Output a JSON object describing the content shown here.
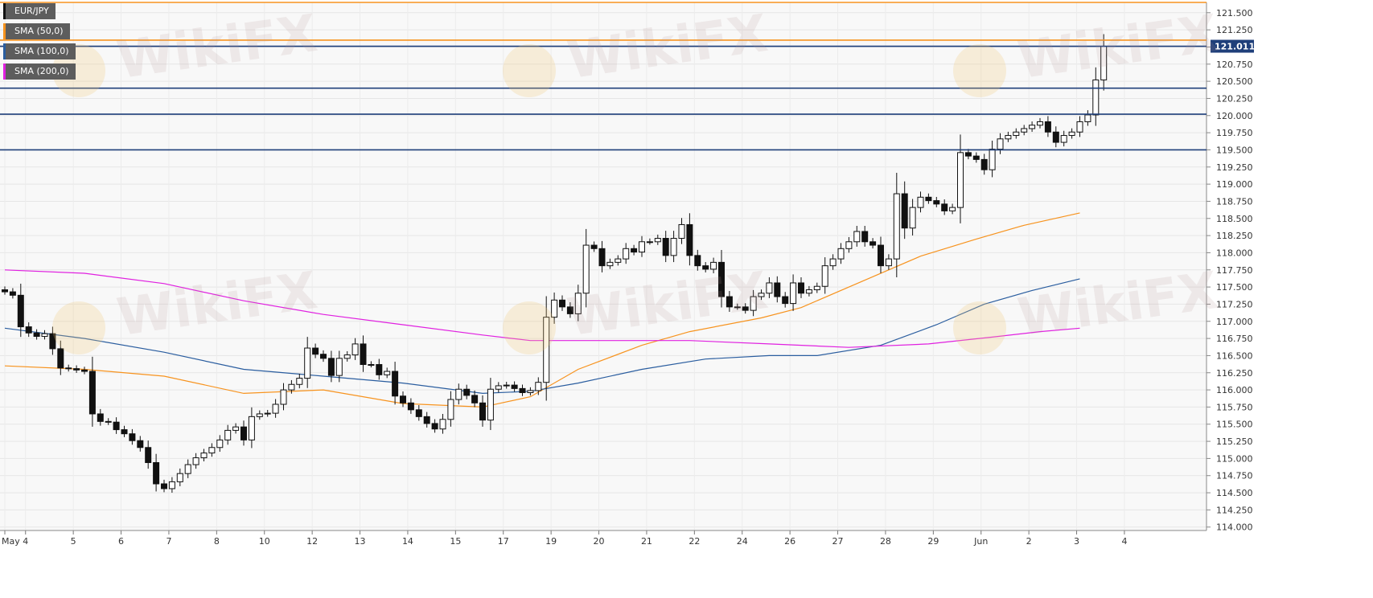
{
  "legend": [
    {
      "label": "EUR/JPY",
      "color": "#111111"
    },
    {
      "label": "SMA (50,0)",
      "color": "#f7931e"
    },
    {
      "label": "SMA (100,0)",
      "color": "#2a5d9f"
    },
    {
      "label": "SMA (200,0)",
      "color": "#e020e0"
    }
  ],
  "watermark": "WikiFX",
  "last_price": {
    "label": "121.011",
    "value": 121.011
  },
  "chart_data": {
    "type": "candlestick",
    "symbol": "EUR/JPY",
    "ylim": [
      113.95,
      121.65
    ],
    "yticks": [
      "114.000",
      "114.250",
      "114.500",
      "114.750",
      "115.000",
      "115.250",
      "115.500",
      "115.750",
      "116.000",
      "116.250",
      "116.500",
      "116.750",
      "117.000",
      "117.250",
      "117.500",
      "117.750",
      "118.000",
      "118.250",
      "118.500",
      "118.750",
      "119.000",
      "119.250",
      "119.500",
      "119.750",
      "120.000",
      "120.250",
      "120.500",
      "120.750",
      "121.000",
      "121.250",
      "121.500"
    ],
    "xticks": [
      {
        "label": "May",
        "bar": 0
      },
      {
        "label": "4",
        "bar": 2.6
      },
      {
        "label": "5",
        "bar": 8.6
      },
      {
        "label": "6",
        "bar": 14.6
      },
      {
        "label": "7",
        "bar": 20.6
      },
      {
        "label": "8",
        "bar": 26.6
      },
      {
        "label": "10",
        "bar": 32.6
      },
      {
        "label": "12",
        "bar": 38.6
      },
      {
        "label": "13",
        "bar": 44.6
      },
      {
        "label": "14",
        "bar": 50.6
      },
      {
        "label": "15",
        "bar": 56.6
      },
      {
        "label": "17",
        "bar": 62.6
      },
      {
        "label": "19",
        "bar": 68.6
      },
      {
        "label": "20",
        "bar": 74.6
      },
      {
        "label": "21",
        "bar": 80.6
      },
      {
        "label": "22",
        "bar": 86.6
      },
      {
        "label": "24",
        "bar": 92.6
      },
      {
        "label": "26",
        "bar": 98.6
      },
      {
        "label": "27",
        "bar": 104.6
      },
      {
        "label": "28",
        "bar": 110.6
      },
      {
        "label": "29",
        "bar": 116.6
      },
      {
        "label": "Jun",
        "bar": 122.6
      },
      {
        "label": "2",
        "bar": 128.6
      },
      {
        "label": "3",
        "bar": 134.6
      },
      {
        "label": "4",
        "bar": 140.6
      }
    ],
    "hlines": [
      {
        "value": 121.65,
        "color": "#f7931e"
      },
      {
        "value": 121.1,
        "color": "#f7931e"
      },
      {
        "value": 121.011,
        "color": "#1f3f7a"
      },
      {
        "value": 120.4,
        "color": "#1f3f7a"
      },
      {
        "value": 120.02,
        "color": "#1f3f7a"
      },
      {
        "value": 119.5,
        "color": "#1f3f7a"
      }
    ],
    "closes": [
      117.43,
      117.38,
      116.92,
      116.83,
      116.78,
      116.82,
      116.6,
      116.32,
      116.31,
      116.29,
      116.27,
      115.65,
      115.54,
      115.53,
      115.42,
      115.36,
      115.26,
      115.16,
      114.94,
      114.63,
      114.56,
      114.66,
      114.78,
      114.91,
      115.01,
      115.08,
      115.16,
      115.27,
      115.41,
      115.46,
      115.27,
      115.61,
      115.65,
      115.66,
      115.79,
      116.0,
      116.08,
      116.17,
      116.61,
      116.52,
      116.46,
      116.21,
      116.46,
      116.51,
      116.67,
      116.37,
      116.37,
      116.22,
      116.27,
      115.91,
      115.81,
      115.71,
      115.61,
      115.51,
      115.43,
      115.57,
      115.86,
      116.01,
      115.92,
      115.81,
      115.56,
      116.01,
      116.06,
      116.07,
      116.02,
      115.96,
      115.99,
      116.11,
      117.06,
      117.31,
      117.21,
      117.11,
      117.41,
      118.11,
      118.06,
      117.81,
      117.86,
      117.91,
      118.06,
      118.01,
      118.16,
      118.16,
      118.21,
      117.96,
      118.21,
      118.41,
      117.96,
      117.81,
      117.76,
      117.86,
      117.36,
      117.21,
      117.21,
      117.16,
      117.36,
      117.41,
      117.56,
      117.36,
      117.26,
      117.56,
      117.41,
      117.46,
      117.51,
      117.81,
      117.91,
      118.06,
      118.16,
      118.31,
      118.16,
      118.11,
      117.81,
      117.91,
      118.86,
      118.36,
      118.66,
      118.81,
      118.76,
      118.71,
      118.61,
      118.66,
      119.46,
      119.41,
      119.36,
      119.21,
      119.51,
      119.66,
      119.71,
      119.76,
      119.81,
      119.86,
      119.91,
      119.76,
      119.61,
      119.71,
      119.76,
      119.91,
      120.01,
      120.52,
      121.01
    ],
    "series": [
      {
        "name": "SMA (50,0)",
        "color": "#f7931e",
        "points": [
          [
            0,
            116.35
          ],
          [
            10,
            116.3
          ],
          [
            20,
            116.2
          ],
          [
            30,
            115.95
          ],
          [
            40,
            116.0
          ],
          [
            50,
            115.8
          ],
          [
            60,
            115.75
          ],
          [
            66,
            115.9
          ],
          [
            72,
            116.3
          ],
          [
            80,
            116.65
          ],
          [
            86,
            116.85
          ],
          [
            95,
            117.05
          ],
          [
            100,
            117.2
          ],
          [
            108,
            117.6
          ],
          [
            115,
            117.95
          ],
          [
            122,
            118.2
          ],
          [
            128,
            118.4
          ],
          [
            135,
            118.58
          ]
        ]
      },
      {
        "name": "SMA (100,0)",
        "color": "#2a5d9f",
        "points": [
          [
            0,
            116.9
          ],
          [
            10,
            116.75
          ],
          [
            20,
            116.55
          ],
          [
            30,
            116.3
          ],
          [
            40,
            116.2
          ],
          [
            50,
            116.1
          ],
          [
            60,
            115.95
          ],
          [
            66,
            115.98
          ],
          [
            72,
            116.1
          ],
          [
            80,
            116.3
          ],
          [
            88,
            116.45
          ],
          [
            96,
            116.5
          ],
          [
            102,
            116.5
          ],
          [
            110,
            116.65
          ],
          [
            117,
            116.95
          ],
          [
            123,
            117.25
          ],
          [
            129,
            117.45
          ],
          [
            135,
            117.62
          ]
        ]
      },
      {
        "name": "SMA (200,0)",
        "color": "#e020e0",
        "points": [
          [
            0,
            117.75
          ],
          [
            10,
            117.7
          ],
          [
            20,
            117.55
          ],
          [
            30,
            117.3
          ],
          [
            40,
            117.1
          ],
          [
            50,
            116.95
          ],
          [
            60,
            116.8
          ],
          [
            66,
            116.72
          ],
          [
            76,
            116.72
          ],
          [
            86,
            116.72
          ],
          [
            96,
            116.67
          ],
          [
            106,
            116.62
          ],
          [
            116,
            116.67
          ],
          [
            124,
            116.77
          ],
          [
            130,
            116.85
          ],
          [
            135,
            116.9
          ]
        ]
      }
    ]
  }
}
